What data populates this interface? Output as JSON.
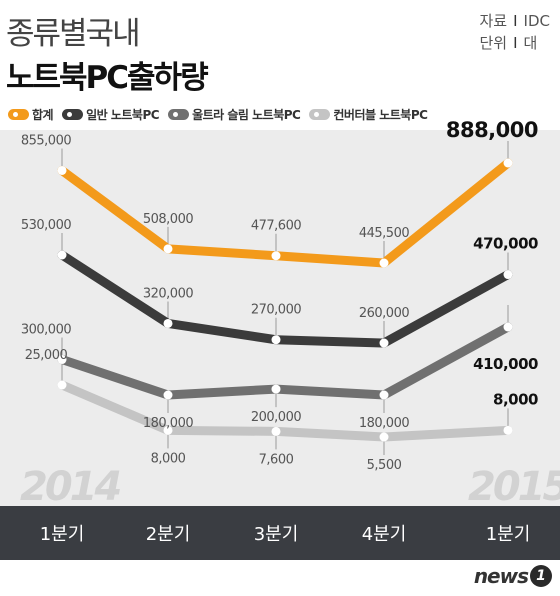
{
  "title_line1": "종류별국내",
  "title_line2": "노트북PC출하량",
  "meta": {
    "source_key": "자료",
    "source_value": "IDC",
    "unit_key": "단위",
    "unit_value": "대",
    "separator": "I"
  },
  "logo": {
    "word": "news",
    "badge": "1"
  },
  "chart_data": {
    "type": "line",
    "title": "종류별국내 노트북PC출하량",
    "year_labels": [
      "2014",
      "2015"
    ],
    "categories": [
      "1분기",
      "2분기",
      "3분기",
      "4분기",
      "1분기"
    ],
    "ylabel": "",
    "series": [
      {
        "name": "합계",
        "color": "#f39a1b",
        "values": [
          855000,
          508000,
          477600,
          445500,
          888000
        ],
        "value_labels": [
          "855,000",
          "508,000",
          "477,600",
          "445,500",
          "888,000"
        ]
      },
      {
        "name": "일반 노트북PC",
        "color": "#3b3b3b",
        "values": [
          530000,
          320000,
          270000,
          260000,
          470000
        ],
        "value_labels": [
          "530,000",
          "320,000",
          "270,000",
          "260,000",
          "470,000"
        ]
      },
      {
        "name": "울트라 슬림 노트북PC",
        "color": "#707070",
        "values": [
          300000,
          180000,
          200000,
          180000,
          410000
        ],
        "value_labels": [
          "300,000",
          "180,000",
          "200,000",
          "180,000",
          "410,000"
        ]
      },
      {
        "name": "컨버터블 노트북PC",
        "color": "#c4c4c4",
        "values": [
          25000,
          8000,
          7600,
          5500,
          8000
        ],
        "value_labels": [
          "25,000",
          "8,000",
          "7,600",
          "5,500",
          "8,000"
        ]
      }
    ]
  }
}
